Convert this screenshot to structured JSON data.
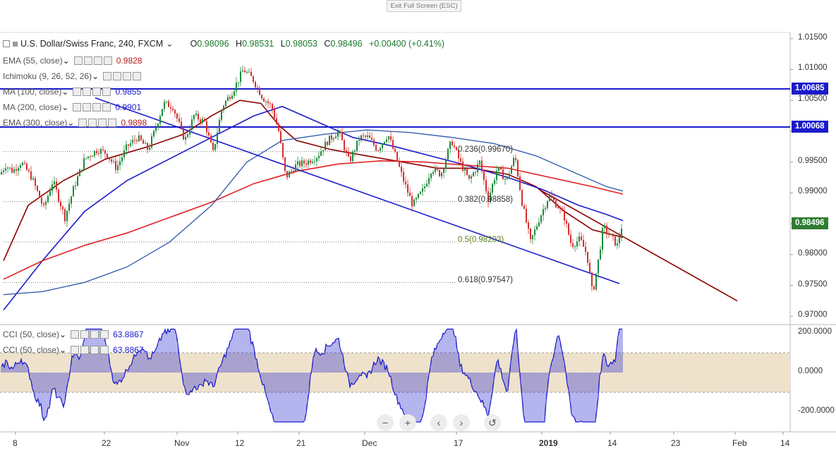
{
  "toolbar": {
    "exit_fullscreen": "Exit Full Screen (ESC)"
  },
  "symbol": {
    "title": "U.S. Dollar/Swiss Franc, 240, FXCM",
    "open_label": "O",
    "open": "0.98096",
    "high_label": "H",
    "high": "0.98531",
    "low_label": "L",
    "low": "0.98053",
    "close_label": "C",
    "close": "0.98496",
    "change": "+0.00400 (+0.41%)"
  },
  "indicators": [
    {
      "name": "EMA (55, close)",
      "value": "0.9828",
      "color": "#b71c1c"
    },
    {
      "name": "Ichimoku (9, 26, 52, 26)",
      "value": "",
      "color": "#555555"
    },
    {
      "name": "MA (100, close)",
      "value": "0.9855",
      "color": "#1a1acc"
    },
    {
      "name": "MA (200, close)",
      "value": "0.9901",
      "color": "#1a1acc"
    },
    {
      "name": "EMA (300, close)",
      "value": "0.9898",
      "color": "#b71c1c"
    }
  ],
  "oscillators": [
    {
      "name": "CCI (50, close)",
      "value": "63.8867"
    },
    {
      "name": "CCI (50, close)",
      "value": "63.8867"
    }
  ],
  "fib_levels": [
    {
      "label": "0.236(0.99670)",
      "price": 0.9967
    },
    {
      "label": "0.382(0.98858)",
      "price": 0.98858
    },
    {
      "label": "0.5(0.98203)",
      "price": 0.98203
    },
    {
      "label": "0.618(0.97547)",
      "price": 0.97547
    }
  ],
  "price_labels": [
    {
      "text": "1.00685",
      "price": 1.00685,
      "color": "#1a1acc"
    },
    {
      "text": "1.00068",
      "price": 1.00068,
      "color": "#1a1acc"
    },
    {
      "text": "0.98496",
      "price": 0.98496,
      "color": "#2e7d32"
    }
  ],
  "nav_controls": [
    "−",
    "+",
    "‹",
    "›",
    "↺"
  ],
  "chart_data": {
    "type": "line",
    "title": "U.S. Dollar/Swiss Franc, 240, FXCM",
    "y_ticks": [
      "1.01500",
      "1.01000",
      "1.00500",
      "1.00000",
      "0.99500",
      "0.99000",
      "0.98500",
      "0.98000",
      "0.97500",
      "0.97000"
    ],
    "ylim": [
      0.969,
      1.016
    ],
    "x_ticks": [
      "8",
      "22",
      "Nov",
      "12",
      "21",
      "Dec",
      "17",
      "2019",
      "14",
      "23",
      "Feb",
      "14"
    ],
    "horizontal_levels": [
      1.00685,
      1.00068
    ],
    "cci_ticks": [
      "200.0000",
      "0.0000",
      "-200.0000"
    ],
    "cci_band": [
      100,
      -100
    ],
    "series": [
      {
        "name": "USD/CHF close",
        "color": "#1b8a3a",
        "points": [
          [
            0,
            0.993
          ],
          [
            8,
            0.9945
          ],
          [
            18,
            0.9935
          ],
          [
            30,
            0.995
          ],
          [
            45,
            0.9925
          ],
          [
            62,
            0.9875
          ],
          [
            75,
            0.992
          ],
          [
            92,
            0.986
          ],
          [
            105,
            0.991
          ],
          [
            120,
            0.9955
          ],
          [
            138,
            0.997
          ],
          [
            150,
            0.9965
          ],
          [
            165,
            0.994
          ],
          [
            180,
            0.9975
          ],
          [
            195,
            0.999
          ],
          [
            210,
            0.997
          ],
          [
            222,
            1.001
          ],
          [
            232,
            1.0045
          ],
          [
            245,
            1.004
          ],
          [
            262,
            0.9985
          ],
          [
            275,
            1.0025
          ],
          [
            290,
            1.0015
          ],
          [
            302,
            0.9965
          ],
          [
            315,
            1.004
          ],
          [
            330,
            1.0065
          ],
          [
            345,
            1.01
          ],
          [
            358,
            1.0085
          ],
          [
            372,
            1.0055
          ],
          [
            385,
            1.004
          ],
          [
            395,
            1.0
          ],
          [
            405,
            0.9925
          ],
          [
            420,
            0.9945
          ],
          [
            435,
            0.995
          ],
          [
            450,
            0.996
          ],
          [
            465,
            0.9985
          ],
          [
            480,
            1.0
          ],
          [
            495,
            0.995
          ],
          [
            510,
            0.999
          ],
          [
            522,
            0.999
          ],
          [
            535,
            0.997
          ],
          [
            550,
            0.9995
          ],
          [
            562,
            0.9955
          ],
          [
            572,
            0.992
          ],
          [
            585,
            0.988
          ],
          [
            600,
            0.9905
          ],
          [
            612,
            0.994
          ],
          [
            625,
            0.993
          ],
          [
            640,
            0.9985
          ],
          [
            652,
            0.995
          ],
          [
            665,
            0.992
          ],
          [
            680,
            0.995
          ],
          [
            692,
            0.989
          ],
          [
            705,
            0.994
          ],
          [
            718,
            0.992
          ],
          [
            730,
            0.996
          ],
          [
            740,
            0.9885
          ],
          [
            752,
            0.982
          ],
          [
            765,
            0.986
          ],
          [
            778,
            0.9895
          ],
          [
            790,
            0.988
          ],
          [
            800,
            0.986
          ],
          [
            810,
            0.9815
          ],
          [
            822,
            0.9825
          ],
          [
            832,
            0.98
          ],
          [
            840,
            0.9735
          ],
          [
            848,
            0.979
          ],
          [
            855,
            0.9845
          ],
          [
            865,
            0.983
          ],
          [
            875,
            0.9815
          ],
          [
            882,
            0.985
          ]
        ]
      },
      {
        "name": "EMA 55",
        "color": "#8b0000",
        "points": [
          [
            5,
            0.979
          ],
          [
            40,
            0.988
          ],
          [
            90,
            0.992
          ],
          [
            150,
            0.9955
          ],
          [
            210,
            0.9975
          ],
          [
            260,
            0.9995
          ],
          [
            300,
            1.0025
          ],
          [
            340,
            1.005
          ],
          [
            370,
            1.0045
          ],
          [
            395,
            1.001
          ],
          [
            420,
            0.9985
          ],
          [
            470,
            0.997
          ],
          [
            520,
            0.996
          ],
          [
            570,
            0.995
          ],
          [
            620,
            0.994
          ],
          [
            670,
            0.994
          ],
          [
            720,
            0.993
          ],
          [
            760,
            0.991
          ],
          [
            800,
            0.987
          ],
          [
            840,
            0.984
          ],
          [
            883,
            0.9828
          ]
        ]
      },
      {
        "name": "MA 100",
        "color": "#1a1acc",
        "points": [
          [
            5,
            0.971
          ],
          [
            60,
            0.979
          ],
          [
            120,
            0.987
          ],
          [
            180,
            0.992
          ],
          [
            240,
            0.9955
          ],
          [
            300,
            0.999
          ],
          [
            360,
            1.0025
          ],
          [
            400,
            1.004
          ],
          [
            440,
            1.002
          ],
          [
            500,
            0.999
          ],
          [
            560,
            0.9975
          ],
          [
            610,
            0.996
          ],
          [
            660,
            0.9945
          ],
          [
            720,
            0.9925
          ],
          [
            770,
            0.9905
          ],
          [
            820,
            0.988
          ],
          [
            860,
            0.9865
          ],
          [
            883,
            0.9855
          ]
        ]
      },
      {
        "name": "EMA 300",
        "color": "#e02020",
        "points": [
          [
            5,
            0.976
          ],
          [
            60,
            0.979
          ],
          [
            120,
            0.9815
          ],
          [
            180,
            0.9835
          ],
          [
            240,
            0.986
          ],
          [
            300,
            0.9885
          ],
          [
            360,
            0.9915
          ],
          [
            420,
            0.9935
          ],
          [
            480,
            0.9947
          ],
          [
            540,
            0.9952
          ],
          [
            600,
            0.995
          ],
          [
            660,
            0.9945
          ],
          [
            720,
            0.994
          ],
          [
            780,
            0.9925
          ],
          [
            840,
            0.991
          ],
          [
            883,
            0.9898
          ]
        ]
      },
      {
        "name": "MA 200",
        "color": "#3a5fb0",
        "points": [
          [
            5,
            0.9735
          ],
          [
            60,
            0.974
          ],
          [
            120,
            0.9755
          ],
          [
            180,
            0.978
          ],
          [
            240,
            0.982
          ],
          [
            300,
            0.988
          ],
          [
            350,
            0.995
          ],
          [
            400,
            0.9985
          ],
          [
            460,
            0.9995
          ],
          [
            520,
            1.0002
          ],
          [
            580,
            0.9998
          ],
          [
            640,
            0.999
          ],
          [
            700,
            0.998
          ],
          [
            760,
            0.996
          ],
          [
            820,
            0.993
          ],
          [
            860,
            0.991
          ],
          [
            883,
            0.9903
          ]
        ]
      },
      {
        "name": "Trendline falling",
        "color": "#1a1acc",
        "points": [
          [
            135,
            1.0054
          ],
          [
            878,
            0.9753
          ]
        ]
      },
      {
        "name": "Trendline resistance",
        "color": "#8b0000",
        "points": [
          [
            765,
            0.9905
          ],
          [
            1045,
            0.9725
          ]
        ]
      }
    ]
  }
}
